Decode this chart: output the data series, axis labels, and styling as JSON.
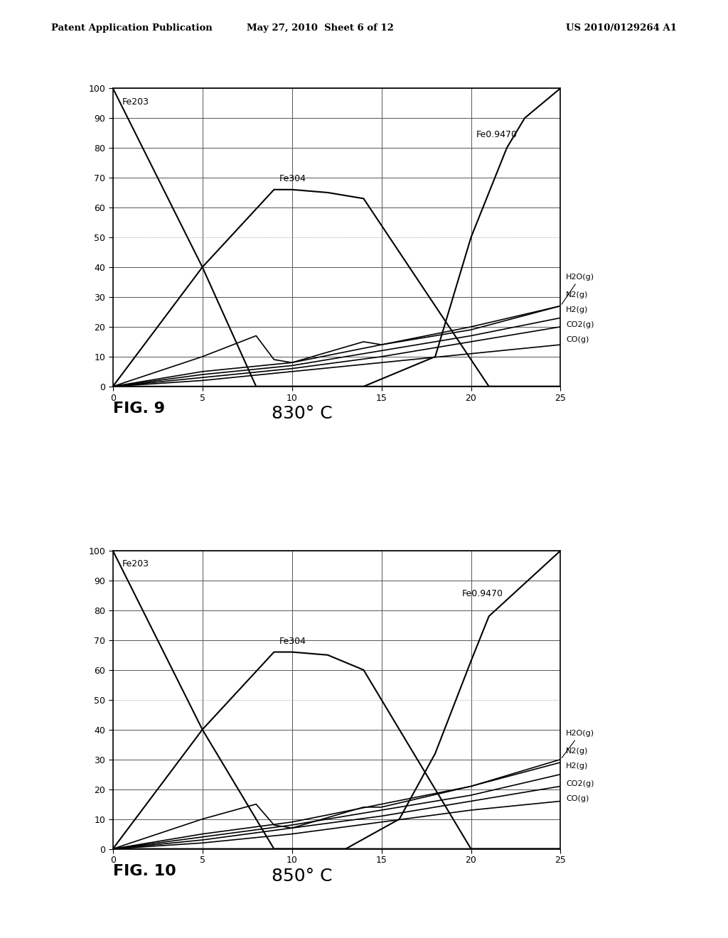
{
  "fig9": {
    "title": "830° C",
    "fig_label": "FIG. 9",
    "Fe203": {
      "x": [
        0,
        5,
        8,
        25
      ],
      "y": [
        100,
        40,
        0,
        0
      ]
    },
    "Fe304": {
      "x": [
        0,
        5,
        9,
        10,
        12,
        14,
        21,
        22,
        25
      ],
      "y": [
        0,
        40,
        66,
        66,
        65,
        63,
        0,
        0,
        0
      ]
    },
    "Fe0.9470": {
      "x": [
        0,
        14,
        18,
        20,
        21,
        22,
        23,
        25
      ],
      "y": [
        0,
        0,
        10,
        50,
        65,
        80,
        90,
        100
      ]
    },
    "H2O": {
      "x": [
        0,
        5,
        8,
        9,
        10,
        14,
        15,
        20,
        25
      ],
      "y": [
        0,
        10,
        17,
        9,
        8,
        15,
        14,
        20,
        27
      ]
    },
    "N2": {
      "x": [
        0,
        5,
        10,
        15,
        20,
        25
      ],
      "y": [
        0,
        5,
        8,
        14,
        19,
        27
      ]
    },
    "H2": {
      "x": [
        0,
        5,
        10,
        15,
        20,
        25
      ],
      "y": [
        0,
        4,
        7,
        12,
        17,
        23
      ]
    },
    "CO2": {
      "x": [
        0,
        5,
        10,
        15,
        20,
        25
      ],
      "y": [
        0,
        3,
        6,
        10,
        15,
        20
      ]
    },
    "CO": {
      "x": [
        0,
        5,
        10,
        15,
        20,
        25
      ],
      "y": [
        0,
        2,
        5,
        8,
        11,
        14
      ]
    }
  },
  "fig10": {
    "title": "850° C",
    "fig_label": "FIG. 10",
    "Fe203": {
      "x": [
        0,
        5,
        9,
        25
      ],
      "y": [
        100,
        40,
        0,
        0
      ]
    },
    "Fe304": {
      "x": [
        0,
        5,
        9,
        10,
        12,
        14,
        20,
        21,
        25
      ],
      "y": [
        0,
        40,
        66,
        66,
        65,
        60,
        0,
        0,
        0
      ]
    },
    "Fe0.9470": {
      "x": [
        0,
        13,
        16,
        18,
        20,
        21,
        25
      ],
      "y": [
        0,
        0,
        10,
        32,
        63,
        78,
        100
      ]
    },
    "H2O": {
      "x": [
        0,
        5,
        8,
        9,
        10,
        14,
        15,
        20,
        25
      ],
      "y": [
        0,
        10,
        15,
        8,
        7,
        14,
        14,
        21,
        30
      ]
    },
    "N2": {
      "x": [
        0,
        5,
        10,
        15,
        20,
        25
      ],
      "y": [
        0,
        5,
        9,
        15,
        21,
        29
      ]
    },
    "H2": {
      "x": [
        0,
        5,
        10,
        15,
        20,
        25
      ],
      "y": [
        0,
        4,
        8,
        13,
        18,
        25
      ]
    },
    "CO2": {
      "x": [
        0,
        5,
        10,
        15,
        20,
        25
      ],
      "y": [
        0,
        3,
        7,
        11,
        16,
        21
      ]
    },
    "CO": {
      "x": [
        0,
        5,
        10,
        15,
        20,
        25
      ],
      "y": [
        0,
        2,
        5,
        9,
        13,
        16
      ]
    }
  },
  "header": {
    "left": "Patent Application Publication",
    "center": "May 27, 2010  Sheet 6 of 12",
    "right": "US 2010/0129264 A1"
  },
  "line_color": "#000000",
  "bg_color": "#ffffff",
  "xlim": [
    0,
    25
  ],
  "ylim": [
    0,
    100
  ],
  "xticks": [
    0,
    5,
    10,
    15,
    20,
    25
  ],
  "yticks": [
    0,
    10,
    20,
    30,
    40,
    50,
    60,
    70,
    80,
    90,
    100
  ]
}
